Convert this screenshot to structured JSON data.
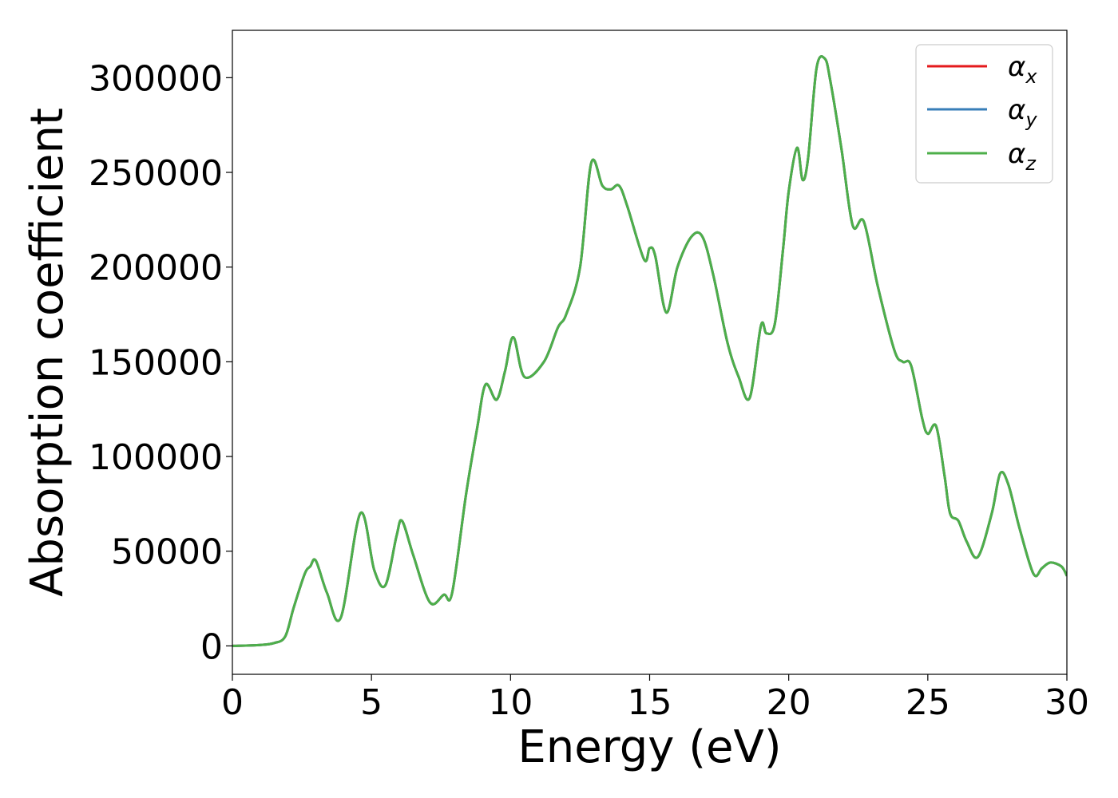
{
  "chart_data": {
    "type": "line",
    "title": "",
    "xlabel": "Energy (eV)",
    "ylabel": "Absorption coefficient",
    "xlim": [
      0,
      30
    ],
    "ylim": [
      -15000,
      325000
    ],
    "xticks": [
      0,
      5,
      10,
      15,
      20,
      25,
      30
    ],
    "xtick_labels": [
      "0",
      "5",
      "10",
      "15",
      "20",
      "25",
      "30"
    ],
    "yticks": [
      0,
      50000,
      100000,
      150000,
      200000,
      250000,
      300000
    ],
    "ytick_labels": [
      "0",
      "50000",
      "100000",
      "150000",
      "200000",
      "250000",
      "300000"
    ],
    "grid": false,
    "legend_position": "top-right",
    "x": [
      0,
      1,
      1.5,
      1.9,
      2.2,
      2.6,
      2.8,
      3.0,
      3.4,
      3.9,
      4.6,
      5.1,
      5.5,
      5.9,
      6.1,
      6.5,
      7.1,
      7.6,
      7.9,
      8.4,
      8.8,
      9.1,
      9.5,
      9.8,
      10.1,
      10.5,
      11.2,
      11.7,
      12.0,
      12.5,
      12.9,
      13.3,
      13.6,
      13.9,
      14.2,
      14.8,
      15.0,
      15.2,
      15.6,
      16.0,
      16.5,
      16.9,
      17.3,
      17.8,
      18.2,
      18.6,
      19.0,
      19.2,
      19.5,
      19.8,
      20.0,
      20.3,
      20.5,
      20.7,
      21.0,
      21.3,
      21.5,
      21.9,
      22.3,
      22.7,
      23.2,
      23.8,
      24.1,
      24.4,
      24.8,
      25.0,
      25.3,
      25.6,
      25.8,
      26.1,
      26.4,
      26.8,
      27.3,
      27.6,
      27.9,
      28.3,
      28.8,
      29.1,
      29.4,
      29.8,
      30.0
    ],
    "series": [
      {
        "name": "αx",
        "color": "#e41a1c",
        "y": [
          0,
          500,
          1500,
          5000,
          20000,
          38000,
          42000,
          45000,
          28000,
          15000,
          70000,
          40000,
          32000,
          58000,
          66000,
          48000,
          23000,
          27000,
          28000,
          80000,
          115000,
          138000,
          130000,
          145000,
          163000,
          142000,
          150000,
          168000,
          175000,
          200000,
          255000,
          243000,
          241000,
          243000,
          232000,
          204000,
          210000,
          206000,
          176000,
          200000,
          216000,
          216000,
          195000,
          160000,
          142000,
          131000,
          169000,
          165000,
          170000,
          210000,
          240000,
          263000,
          246000,
          258000,
          305000,
          310000,
          298000,
          262000,
          222000,
          224000,
          190000,
          156000,
          150000,
          148000,
          120000,
          112000,
          116000,
          90000,
          70000,
          66000,
          55000,
          47000,
          70000,
          91000,
          85000,
          62000,
          38000,
          41000,
          44000,
          42000,
          37000
        ]
      },
      {
        "name": "αy",
        "color": "#377eb8",
        "y": [
          0,
          500,
          1500,
          5000,
          20000,
          38000,
          42000,
          45000,
          28000,
          15000,
          70000,
          40000,
          32000,
          58000,
          66000,
          48000,
          23000,
          27000,
          28000,
          80000,
          115000,
          138000,
          130000,
          145000,
          163000,
          142000,
          150000,
          168000,
          175000,
          200000,
          255000,
          243000,
          241000,
          243000,
          232000,
          204000,
          210000,
          206000,
          176000,
          200000,
          216000,
          216000,
          195000,
          160000,
          142000,
          131000,
          169000,
          165000,
          170000,
          210000,
          240000,
          263000,
          246000,
          258000,
          305000,
          310000,
          298000,
          262000,
          222000,
          224000,
          190000,
          156000,
          150000,
          148000,
          120000,
          112000,
          116000,
          90000,
          70000,
          66000,
          55000,
          47000,
          70000,
          91000,
          85000,
          62000,
          38000,
          41000,
          44000,
          42000,
          37000
        ]
      },
      {
        "name": "αz",
        "color": "#4daf4a",
        "y": [
          0,
          500,
          1500,
          5000,
          20000,
          38000,
          42000,
          45000,
          28000,
          15000,
          70000,
          40000,
          32000,
          58000,
          66000,
          48000,
          23000,
          27000,
          28000,
          80000,
          115000,
          138000,
          130000,
          145000,
          163000,
          142000,
          150000,
          168000,
          175000,
          200000,
          255000,
          243000,
          241000,
          243000,
          232000,
          204000,
          210000,
          206000,
          176000,
          200000,
          216000,
          216000,
          195000,
          160000,
          142000,
          131000,
          169000,
          165000,
          170000,
          210000,
          240000,
          263000,
          246000,
          258000,
          305000,
          310000,
          298000,
          262000,
          222000,
          224000,
          190000,
          156000,
          150000,
          148000,
          120000,
          112000,
          116000,
          90000,
          70000,
          66000,
          55000,
          47000,
          70000,
          91000,
          85000,
          62000,
          38000,
          41000,
          44000,
          42000,
          37000
        ]
      }
    ],
    "legend": [
      {
        "symbol": "α",
        "sub": "x"
      },
      {
        "symbol": "α",
        "sub": "y"
      },
      {
        "symbol": "α",
        "sub": "z"
      }
    ]
  }
}
